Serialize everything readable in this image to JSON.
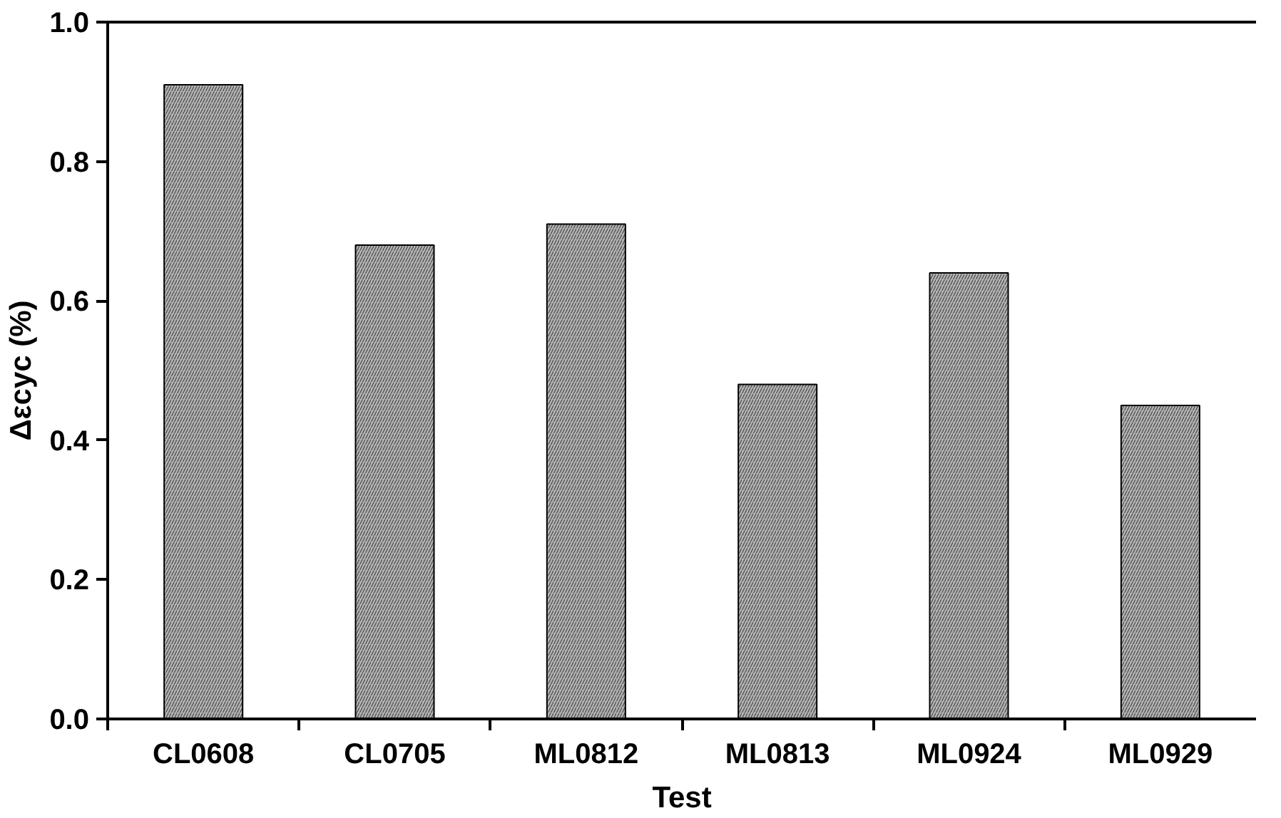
{
  "chart_data": {
    "type": "bar",
    "xlabel": "Test",
    "ylabel": "Δεcyc (%)",
    "categories": [
      "CL0608",
      "CL0705",
      "ML0812",
      "ML0813",
      "ML0924",
      "ML0929"
    ],
    "values": [
      0.91,
      0.68,
      0.71,
      0.48,
      0.64,
      0.45
    ],
    "color": "#b4b4b4",
    "ylim": [
      0,
      1.0
    ],
    "yticks": [
      {
        "value": 0,
        "label": "0.0"
      },
      0.2,
      0.4,
      0.6,
      0.8,
      {
        "value": 1.0,
        "label": "1.0"
      }
    ]
  }
}
